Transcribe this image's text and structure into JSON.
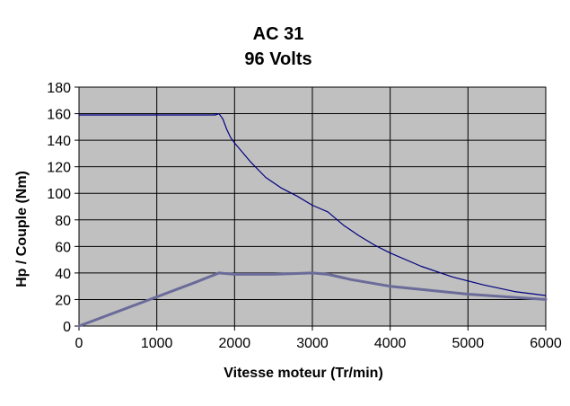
{
  "chart_data": {
    "type": "line",
    "title": "AC 31",
    "subtitle": "96 Volts",
    "xlabel": "Vitesse moteur (Tr/min)",
    "ylabel": "Hp / Couple (Nm)",
    "xlim": [
      0,
      6000
    ],
    "ylim": [
      0,
      180
    ],
    "x_ticks": [
      "0",
      "1000",
      "2000",
      "3000",
      "4000",
      "5000",
      "6000"
    ],
    "y_ticks": [
      "0",
      "20",
      "40",
      "60",
      "80",
      "100",
      "120",
      "140",
      "160",
      "180"
    ],
    "grid": true,
    "plot_background": "#c0c0c0",
    "legend": "none",
    "series": [
      {
        "color": "#000080",
        "x": [
          0,
          500,
          1000,
          1500,
          1750,
          1800,
          1850,
          1900,
          1950,
          2000,
          2200,
          2400,
          2600,
          2800,
          3000,
          3200,
          3400,
          3600,
          3800,
          4000,
          4400,
          4800,
          5200,
          5600,
          6000
        ],
        "y": [
          159,
          159,
          159,
          159,
          159,
          160,
          156,
          148,
          142,
          138,
          124,
          112,
          104,
          98,
          91,
          86,
          76,
          68,
          61,
          55,
          45,
          37,
          31,
          26,
          23
        ]
      },
      {
        "color": "#6b6b9a",
        "x": [
          0,
          1000,
          1500,
          1800,
          2000,
          2500,
          3000,
          3200,
          3500,
          4000,
          4500,
          5000,
          5500,
          6000
        ],
        "y": [
          0,
          22,
          33,
          40,
          39,
          39,
          40,
          39,
          35,
          30,
          27,
          24,
          22,
          20
        ]
      }
    ]
  }
}
